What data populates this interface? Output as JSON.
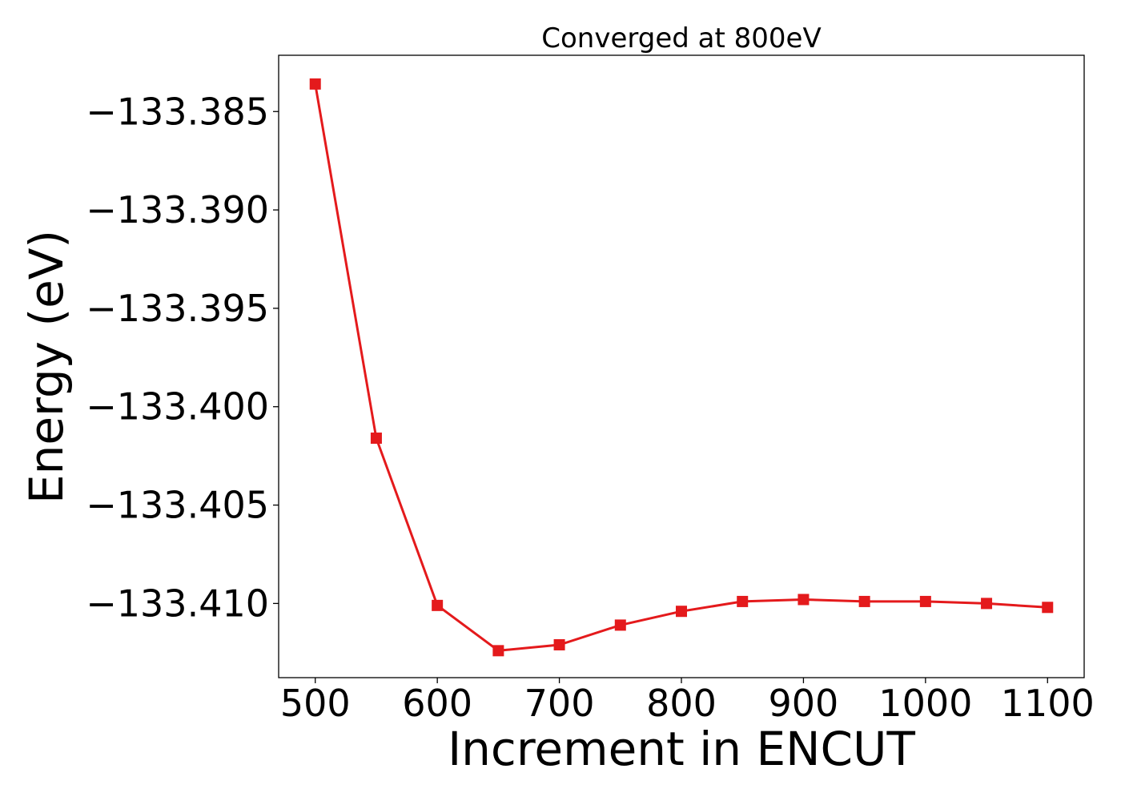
{
  "chart_data": {
    "type": "line",
    "title": "Converged at 800eV",
    "xlabel": "Increment in ENCUT",
    "ylabel": "Energy (eV)",
    "xlim": [
      470,
      1130
    ],
    "ylim": [
      -133.41377,
      -133.38214
    ],
    "x_ticks": [
      500,
      600,
      700,
      800,
      900,
      1000,
      1100
    ],
    "x_tick_labels": [
      "500",
      "600",
      "700",
      "800",
      "900",
      "1000",
      "1100"
    ],
    "y_ticks": [
      -133.385,
      -133.39,
      -133.395,
      -133.4,
      -133.405,
      -133.41
    ],
    "y_tick_labels": [
      "−133.385",
      "−133.390",
      "−133.395",
      "−133.400",
      "−133.405",
      "−133.410"
    ],
    "grid": false,
    "series": [
      {
        "color": "#e41a1c",
        "marker": "square",
        "x": [
          500,
          550,
          600,
          650,
          700,
          750,
          800,
          850,
          900,
          950,
          1000,
          1050,
          1100
        ],
        "y": [
          -133.3836,
          -133.4016,
          -133.4101,
          -133.4124,
          -133.4121,
          -133.4111,
          -133.4104,
          -133.4099,
          -133.4098,
          -133.4099,
          -133.4099,
          -133.41,
          -133.4102
        ]
      }
    ]
  }
}
